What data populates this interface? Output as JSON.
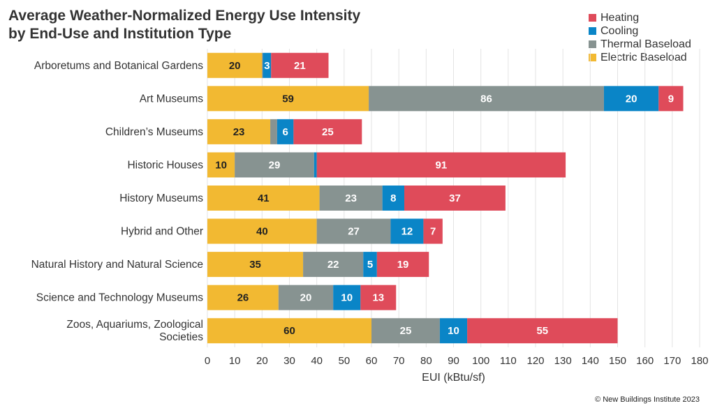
{
  "title_lines": [
    "Average Weather-Normalized Energy Use Intensity",
    "by End-Use and Institution Type"
  ],
  "credit": "© New Buildings Institute 2023",
  "chart_data": {
    "type": "bar",
    "orientation": "horizontal",
    "stacked": true,
    "title": "Average Weather-Normalized Energy Use Intensity by End-Use and Institution Type",
    "xlabel": "EUI (kBtu/sf)",
    "ylabel": "",
    "xlim": [
      0,
      180
    ],
    "xticks": [
      0,
      10,
      20,
      30,
      40,
      50,
      60,
      70,
      80,
      90,
      100,
      110,
      120,
      130,
      140,
      150,
      160,
      170,
      180
    ],
    "grid": "vertical",
    "legend_position": "top-right",
    "categories": [
      [
        "Arboretums and Botanical Gardens"
      ],
      [
        "Art Museums"
      ],
      [
        "Children’s Museums"
      ],
      [
        "Historic Houses"
      ],
      [
        "History Museums"
      ],
      [
        "Hybrid and Other"
      ],
      [
        "Natural History and Natural Science"
      ],
      [
        "Science and Technology Museums"
      ],
      [
        "Zoos, Aquariums, Zoological",
        "Societies"
      ]
    ],
    "series": [
      {
        "name": "Electric Baseload",
        "color": "#F2B932",
        "label_color": "#222222",
        "values": [
          20,
          59,
          23,
          10,
          41,
          40,
          35,
          26,
          60
        ],
        "labels": [
          "20",
          "59",
          "23",
          "10",
          "41",
          "40",
          "35",
          "26",
          "60"
        ]
      },
      {
        "name": "Thermal Baseload",
        "color": "#879391",
        "label_color": "#ffffff",
        "values": [
          0.3,
          86,
          2.5,
          29,
          23,
          27,
          22,
          20,
          25
        ],
        "labels": [
          "",
          "86",
          "",
          "29",
          "23",
          "27",
          "22",
          "20",
          "25"
        ]
      },
      {
        "name": "Cooling",
        "color": "#0A85C7",
        "label_color": "#ffffff",
        "values": [
          3,
          20,
          6,
          1,
          8,
          12,
          5,
          10,
          10
        ],
        "labels": [
          "3",
          "20",
          "6",
          "",
          "8",
          "12",
          "5",
          "10",
          "10"
        ]
      },
      {
        "name": "Heating",
        "color": "#DF4B5A",
        "label_color": "#ffffff",
        "values": [
          21,
          9,
          25,
          91,
          37,
          7,
          19,
          13,
          55
        ],
        "labels": [
          "21",
          "9",
          "25",
          "91",
          "37",
          "7",
          "19",
          "13",
          "55"
        ]
      }
    ],
    "legend_order": [
      "Heating",
      "Cooling",
      "Thermal Baseload",
      "Electric Baseload"
    ]
  }
}
